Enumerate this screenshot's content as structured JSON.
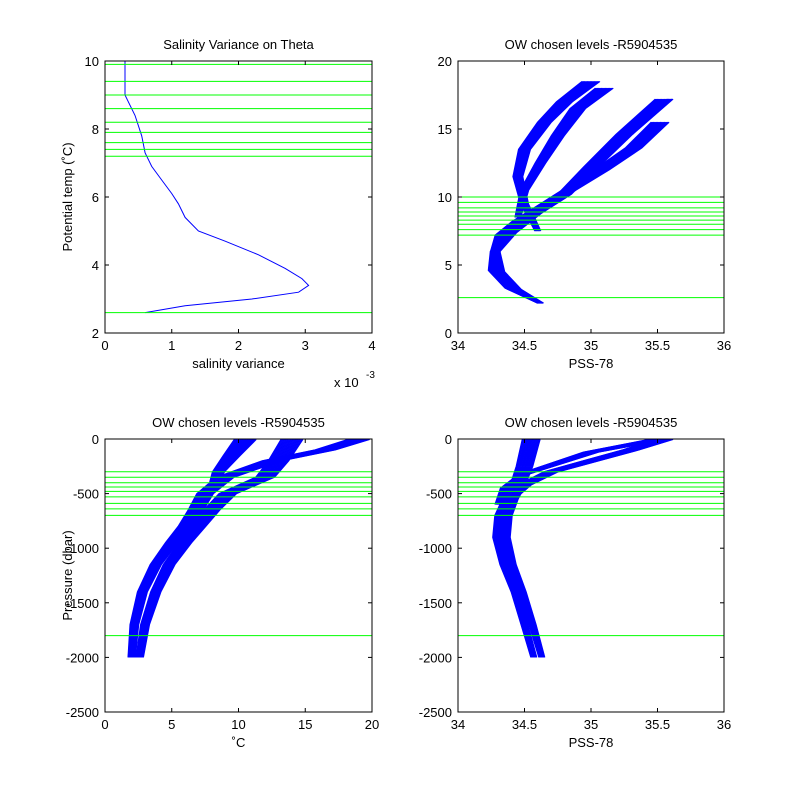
{
  "figure": {
    "background": "#ffffff",
    "axes_color": "#000000",
    "profile_color": "#0000ff",
    "level_color": "#00ff00"
  },
  "chart_data": [
    {
      "type": "line",
      "title": "Salinity Variance on Theta",
      "xlabel": "salinity variance",
      "ylabel": "Potential temp (˚C)",
      "xlim": [
        0,
        4
      ],
      "ylim": [
        2,
        10
      ],
      "xticks": [
        0,
        1,
        2,
        3,
        4
      ],
      "xticklabels": [
        "0",
        "1",
        "2",
        "3",
        "4"
      ],
      "yticks": [
        2,
        4,
        6,
        8,
        10
      ],
      "yticklabels": [
        "2",
        "4",
        "6",
        "8",
        "10"
      ],
      "x_multiplier_base": "x 10",
      "x_multiplier_exp": "-3",
      "series": [
        {
          "x": [
            0.6,
            1.2,
            2.2,
            2.9,
            3.05,
            2.95,
            2.7,
            2.3,
            1.8,
            1.4,
            1.2,
            1.1,
            1.0,
            0.85,
            0.7,
            0.6,
            0.55,
            0.45,
            0.3,
            0.3,
            0.3
          ],
          "y": [
            2.6,
            2.8,
            3.0,
            3.2,
            3.4,
            3.6,
            3.9,
            4.3,
            4.7,
            5.0,
            5.4,
            5.8,
            6.1,
            6.5,
            6.9,
            7.3,
            7.8,
            8.4,
            9.0,
            9.6,
            10.0
          ]
        }
      ],
      "hlines": [
        2.6,
        7.2,
        7.4,
        7.6,
        7.9,
        8.2,
        8.6,
        9.0,
        9.4,
        9.9
      ]
    },
    {
      "type": "line",
      "title": "OW chosen levels -R5904535",
      "xlabel": "PSS-78",
      "ylabel": "",
      "xlim": [
        34,
        36
      ],
      "ylim": [
        0,
        20
      ],
      "xticks": [
        34,
        34.5,
        35,
        35.5,
        36
      ],
      "xticklabels": [
        "34",
        "34.5",
        "35",
        "35.5",
        "36"
      ],
      "yticks": [
        0,
        5,
        10,
        15,
        20
      ],
      "yticklabels": [
        "0",
        "5",
        "10",
        "15",
        "20"
      ],
      "series": [
        {
          "x": [
            34.62,
            34.45,
            34.32,
            34.28,
            34.32,
            34.45,
            34.62,
            34.85,
            35.08,
            35.32,
            35.52
          ],
          "y": [
            2.2,
            3.2,
            4.5,
            6.0,
            7.2,
            8.2,
            9.2,
            10.6,
            12.0,
            13.6,
            15.5
          ]
        },
        {
          "x": [
            34.62,
            34.38,
            34.26,
            34.28,
            34.4,
            34.58,
            34.8,
            35.0,
            35.25,
            35.55
          ],
          "y": [
            2.2,
            3.3,
            4.6,
            6.0,
            7.4,
            8.8,
            10.2,
            12.2,
            14.6,
            17.2
          ]
        },
        {
          "x": [
            34.6,
            34.5,
            34.45,
            34.5,
            34.65,
            34.8,
            35.0
          ],
          "y": [
            7.5,
            9.5,
            11.5,
            13.5,
            15.5,
            17.0,
            18.5
          ]
        },
        {
          "x": [
            34.45,
            34.5,
            34.62,
            34.75,
            34.9,
            35.1
          ],
          "y": [
            8.5,
            10.5,
            12.5,
            14.5,
            16.5,
            18.0
          ]
        }
      ],
      "hlines": [
        2.6,
        7.2,
        7.6,
        8.0,
        8.3,
        8.6,
        8.9,
        9.2,
        9.6,
        10.0
      ]
    },
    {
      "type": "line",
      "title": "OW chosen levels -R5904535",
      "xlabel": "˚C",
      "ylabel": "Pressure (dbar)",
      "xlim": [
        0,
        20
      ],
      "ylim": [
        -2500,
        0
      ],
      "xticks": [
        0,
        5,
        10,
        15,
        20
      ],
      "xticklabels": [
        "0",
        "5",
        "10",
        "15",
        "20"
      ],
      "yticks": [
        -2500,
        -2000,
        -1500,
        -1000,
        -500,
        0
      ],
      "yticklabels": [
        "-2500",
        "-2000",
        "-1500",
        "-1000",
        "-500",
        "0"
      ],
      "series": [
        {
          "x": [
            2.0,
            2.2,
            2.8,
            3.8,
            5.0,
            6.0,
            6.8,
            7.5,
            9.0,
            12.5,
            16.5,
            19.0
          ],
          "y": [
            -2000,
            -1700,
            -1400,
            -1150,
            -950,
            -800,
            -650,
            -500,
            -350,
            -200,
            -100,
            -5
          ]
        },
        {
          "x": [
            2.6,
            3.0,
            3.8,
            4.8,
            6.0,
            7.0,
            8.0,
            9.2,
            12.0,
            13.0,
            14.0
          ],
          "y": [
            -2000,
            -1700,
            -1400,
            -1150,
            -950,
            -800,
            -650,
            -500,
            -350,
            -200,
            -5
          ]
        },
        {
          "x": [
            8.0,
            8.5,
            9.5,
            10.5
          ],
          "y": [
            -450,
            -300,
            -150,
            -5
          ]
        }
      ],
      "hlines": [
        -1800,
        -700,
        -640,
        -590,
        -530,
        -480,
        -440,
        -400,
        -350,
        -300
      ]
    },
    {
      "type": "line",
      "title": "OW chosen levels -R5904535",
      "xlabel": "PSS-78",
      "ylabel": "",
      "xlim": [
        34,
        36
      ],
      "ylim": [
        -2500,
        0
      ],
      "xticks": [
        34,
        34.5,
        35,
        35.5,
        36
      ],
      "xticklabels": [
        "34",
        "34.5",
        "35",
        "35.5",
        "36"
      ],
      "yticks": [
        -2500,
        -2000,
        -1500,
        -1000,
        -500,
        0
      ],
      "yticklabels": [
        "-2500",
        "-2000",
        "-1500",
        "-1000",
        "-500",
        "0"
      ],
      "series": [
        {
          "x": [
            34.57,
            34.5,
            34.43,
            34.35,
            34.3,
            34.32,
            34.38,
            34.5,
            34.7,
            35.0,
            35.3,
            35.55
          ],
          "y": [
            -2000,
            -1700,
            -1400,
            -1150,
            -900,
            -700,
            -550,
            -420,
            -300,
            -200,
            -100,
            -5
          ]
        },
        {
          "x": [
            34.63,
            34.56,
            34.48,
            34.4,
            34.35,
            34.36,
            34.4,
            34.45,
            34.5,
            34.55
          ],
          "y": [
            -2000,
            -1700,
            -1400,
            -1150,
            -900,
            -700,
            -550,
            -420,
            -250,
            -5
          ]
        },
        {
          "x": [
            34.3,
            34.35,
            34.5,
            34.75,
            35.0,
            35.5
          ],
          "y": [
            -600,
            -450,
            -320,
            -220,
            -120,
            -5
          ]
        }
      ],
      "hlines": [
        -1800,
        -700,
        -640,
        -590,
        -530,
        -480,
        -440,
        -400,
        -350,
        -300
      ]
    }
  ]
}
